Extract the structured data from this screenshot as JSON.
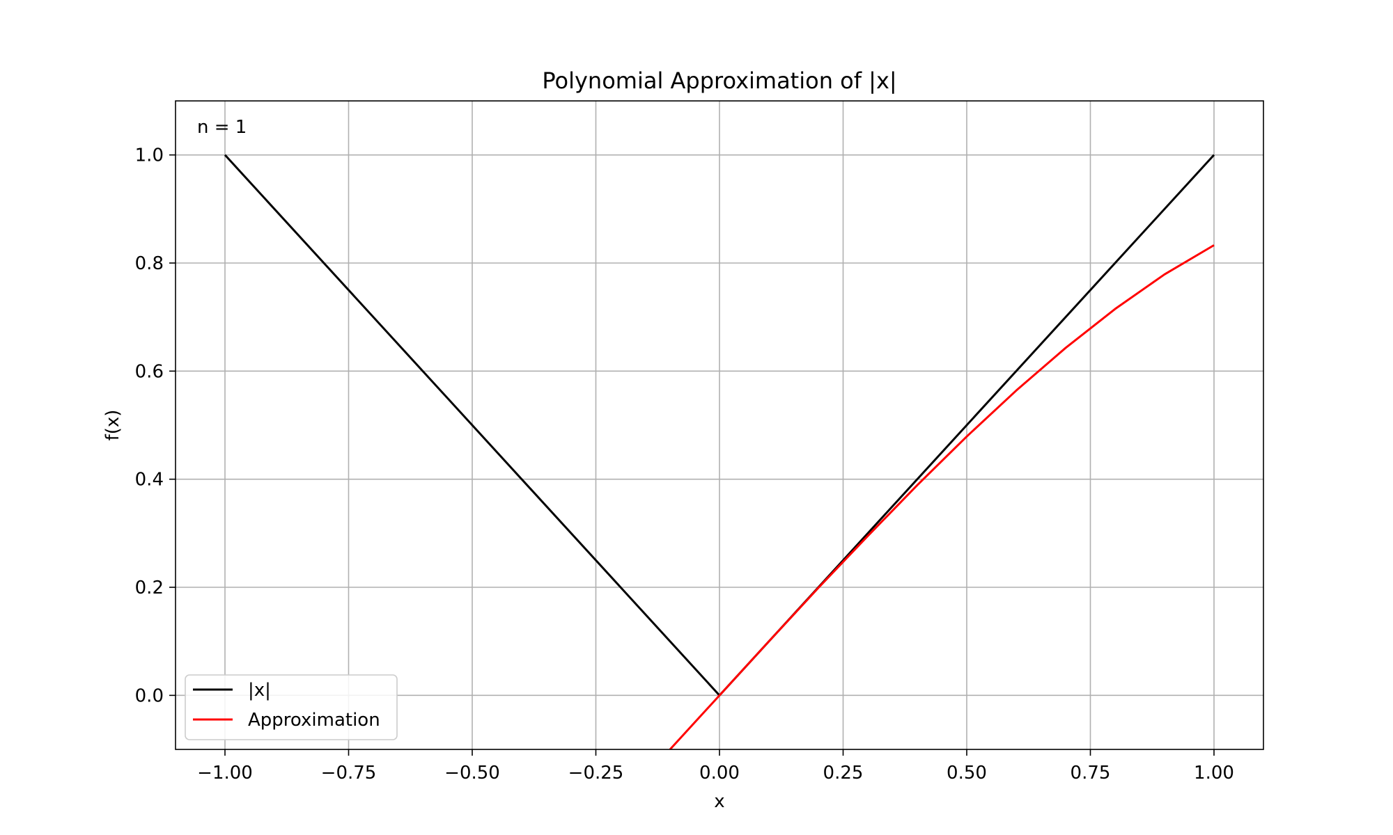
{
  "chart_data": {
    "type": "line",
    "title": "Polynomial Approximation of |x|",
    "xlabel": "x",
    "ylabel": "f(x)",
    "annotation": "n = 1",
    "xlim": [
      -1.1,
      1.1
    ],
    "ylim": [
      -0.1,
      1.1
    ],
    "xticks": [
      -1.0,
      -0.75,
      -0.5,
      -0.25,
      0.0,
      0.25,
      0.5,
      0.75,
      1.0
    ],
    "xtick_labels": [
      "−1.00",
      "−0.75",
      "−0.50",
      "−0.25",
      "0.00",
      "0.25",
      "0.50",
      "0.75",
      "1.00"
    ],
    "yticks": [
      0.0,
      0.2,
      0.4,
      0.6,
      0.8,
      1.0
    ],
    "ytick_labels": [
      "0.0",
      "0.2",
      "0.4",
      "0.6",
      "0.8",
      "1.0"
    ],
    "grid": true,
    "legend_position": "lower-left",
    "series": [
      {
        "name": "|x|",
        "color": "#000000",
        "x": [
          -1.0,
          0.0,
          1.0
        ],
        "y": [
          1.0,
          0.0,
          1.0
        ]
      },
      {
        "name": "Approximation",
        "color": "#ff0000",
        "x": [
          -0.1,
          -0.05,
          0.0,
          0.1,
          0.2,
          0.3,
          0.4,
          0.5,
          0.6,
          0.7,
          0.8,
          0.9,
          1.0
        ],
        "y": [
          -0.1,
          -0.05,
          0.0,
          0.1,
          0.199,
          0.295,
          0.389,
          0.479,
          0.564,
          0.643,
          0.715,
          0.779,
          0.833
        ]
      }
    ]
  }
}
